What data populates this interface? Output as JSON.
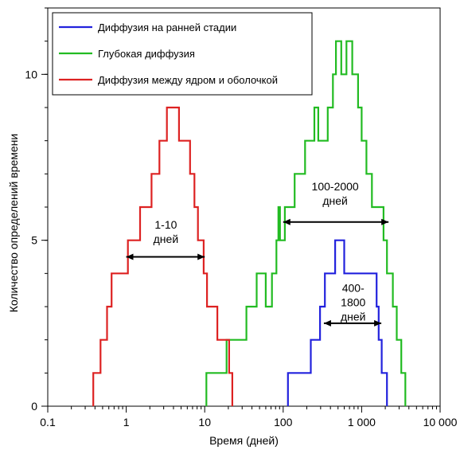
{
  "chart_data": {
    "type": "line",
    "xlabel": "Время (дней)",
    "ylabel": "Количество определений времени",
    "xscale": "log",
    "xlim": [
      0.1,
      10000
    ],
    "ylim": [
      0,
      12
    ],
    "x_ticks": [
      {
        "value": 0.1,
        "label": "0.1"
      },
      {
        "value": 1,
        "label": "1"
      },
      {
        "value": 10,
        "label": "10"
      },
      {
        "value": 100,
        "label": "100"
      },
      {
        "value": 1000,
        "label": "1 000"
      },
      {
        "value": 10000,
        "label": "10 000"
      }
    ],
    "y_ticks": [
      {
        "value": 0,
        "label": "0"
      },
      {
        "value": 5,
        "label": "5"
      },
      {
        "value": 10,
        "label": "10"
      }
    ],
    "legend_position": "top-left",
    "series": [
      {
        "name": "Диффузия на ранней стадии",
        "color": "#2222dd",
        "points": [
          [
            115,
            0
          ],
          [
            115,
            1
          ],
          [
            225,
            1
          ],
          [
            225,
            2
          ],
          [
            295,
            2
          ],
          [
            295,
            3
          ],
          [
            340,
            3
          ],
          [
            340,
            4
          ],
          [
            460,
            4
          ],
          [
            460,
            5
          ],
          [
            600,
            5
          ],
          [
            600,
            4
          ],
          [
            1550,
            4
          ],
          [
            1550,
            3
          ],
          [
            1650,
            3
          ],
          [
            1650,
            2
          ],
          [
            1800,
            2
          ],
          [
            1800,
            1
          ],
          [
            2100,
            1
          ],
          [
            2100,
            0
          ]
        ]
      },
      {
        "name": "Глубокая диффузия",
        "color": "#22bb22",
        "points": [
          [
            10.5,
            0
          ],
          [
            10.5,
            1
          ],
          [
            19,
            1
          ],
          [
            19,
            2
          ],
          [
            34,
            2
          ],
          [
            34,
            3
          ],
          [
            46,
            3
          ],
          [
            46,
            4
          ],
          [
            60,
            4
          ],
          [
            60,
            3
          ],
          [
            72,
            3
          ],
          [
            72,
            4
          ],
          [
            82,
            4
          ],
          [
            82,
            5
          ],
          [
            87,
            5
          ],
          [
            87,
            6
          ],
          [
            91,
            6
          ],
          [
            91,
            5
          ],
          [
            105,
            5
          ],
          [
            105,
            6
          ],
          [
            140,
            6
          ],
          [
            140,
            7
          ],
          [
            190,
            7
          ],
          [
            190,
            8
          ],
          [
            250,
            8
          ],
          [
            250,
            9
          ],
          [
            280,
            9
          ],
          [
            280,
            8
          ],
          [
            370,
            8
          ],
          [
            370,
            9
          ],
          [
            430,
            9
          ],
          [
            430,
            10
          ],
          [
            470,
            10
          ],
          [
            470,
            11
          ],
          [
            550,
            11
          ],
          [
            550,
            10
          ],
          [
            640,
            10
          ],
          [
            640,
            11
          ],
          [
            760,
            11
          ],
          [
            760,
            10
          ],
          [
            900,
            10
          ],
          [
            900,
            9
          ],
          [
            1000,
            9
          ],
          [
            1000,
            8
          ],
          [
            1150,
            8
          ],
          [
            1150,
            7
          ],
          [
            1350,
            7
          ],
          [
            1350,
            6
          ],
          [
            1900,
            6
          ],
          [
            1900,
            5
          ],
          [
            2100,
            5
          ],
          [
            2100,
            4
          ],
          [
            2500,
            4
          ],
          [
            2500,
            3
          ],
          [
            2800,
            3
          ],
          [
            2800,
            2
          ],
          [
            3200,
            2
          ],
          [
            3200,
            1
          ],
          [
            3600,
            1
          ],
          [
            3600,
            0
          ]
        ]
      },
      {
        "name": "Диффузия между ядром и оболочкой",
        "color": "#dd2222",
        "points": [
          [
            0.38,
            0
          ],
          [
            0.38,
            1
          ],
          [
            0.47,
            1
          ],
          [
            0.47,
            2
          ],
          [
            0.57,
            2
          ],
          [
            0.57,
            3
          ],
          [
            0.65,
            3
          ],
          [
            0.65,
            4
          ],
          [
            1.05,
            4
          ],
          [
            1.05,
            5
          ],
          [
            1.5,
            5
          ],
          [
            1.5,
            6
          ],
          [
            2.1,
            6
          ],
          [
            2.1,
            7
          ],
          [
            2.65,
            7
          ],
          [
            2.65,
            8
          ],
          [
            3.3,
            8
          ],
          [
            3.3,
            9
          ],
          [
            4.7,
            9
          ],
          [
            4.7,
            8
          ],
          [
            6.5,
            8
          ],
          [
            6.5,
            7
          ],
          [
            7.4,
            7
          ],
          [
            7.4,
            6
          ],
          [
            8.2,
            6
          ],
          [
            8.2,
            5
          ],
          [
            9.7,
            5
          ],
          [
            9.7,
            4
          ],
          [
            10.7,
            4
          ],
          [
            10.7,
            3
          ],
          [
            14.5,
            3
          ],
          [
            14.5,
            2
          ],
          [
            20.5,
            2
          ],
          [
            20.5,
            1
          ],
          [
            22.5,
            1
          ],
          [
            22.5,
            0
          ]
        ]
      }
    ],
    "annotations": [
      {
        "lines": [
          "1-10",
          "дней"
        ],
        "x_from": 1.0,
        "x_to": 10.0,
        "y": 4.5,
        "text_x": 3.2,
        "text_y": 5.35
      },
      {
        "lines": [
          "100-2000",
          "дней"
        ],
        "x_from": 100,
        "x_to": 2200,
        "y": 5.55,
        "text_x": 460,
        "text_y": 6.5
      },
      {
        "lines": [
          "400-",
          "1800",
          "дней"
        ],
        "x_from": 330,
        "x_to": 1780,
        "y": 2.5,
        "text_x": 780,
        "text_y": 3.45
      }
    ]
  }
}
